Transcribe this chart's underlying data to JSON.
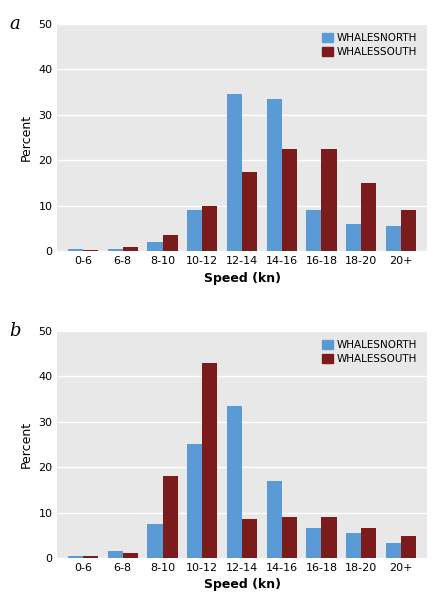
{
  "categories": [
    "0-6",
    "6-8",
    "8-10",
    "10-12",
    "12-14",
    "14-16",
    "16-18",
    "18-20",
    "20+"
  ],
  "panel_a": {
    "north": [
      0.4,
      0.6,
      2.0,
      9.0,
      34.5,
      33.5,
      9.0,
      6.0,
      5.5
    ],
    "south": [
      0.3,
      1.0,
      3.5,
      10.0,
      17.5,
      22.5,
      22.5,
      15.0,
      9.0
    ]
  },
  "panel_b": {
    "north": [
      0.4,
      1.5,
      7.5,
      25.0,
      33.5,
      17.0,
      6.5,
      5.5,
      3.2
    ],
    "south": [
      0.5,
      1.2,
      18.0,
      43.0,
      8.5,
      9.0,
      9.0,
      6.5,
      4.8
    ]
  },
  "north_color": "#5B9BD5",
  "south_color": "#7B1B1B",
  "ylabel": "Percent",
  "xlabel": "Speed (kn)",
  "ylim": [
    0,
    50
  ],
  "yticks": [
    0,
    10,
    20,
    30,
    40,
    50
  ],
  "legend_labels": [
    "WHALESNORTH",
    "WHALESSOUTH"
  ],
  "panel_labels": [
    "a",
    "b"
  ],
  "bar_width": 0.38,
  "background_color": "#E8E8E8"
}
